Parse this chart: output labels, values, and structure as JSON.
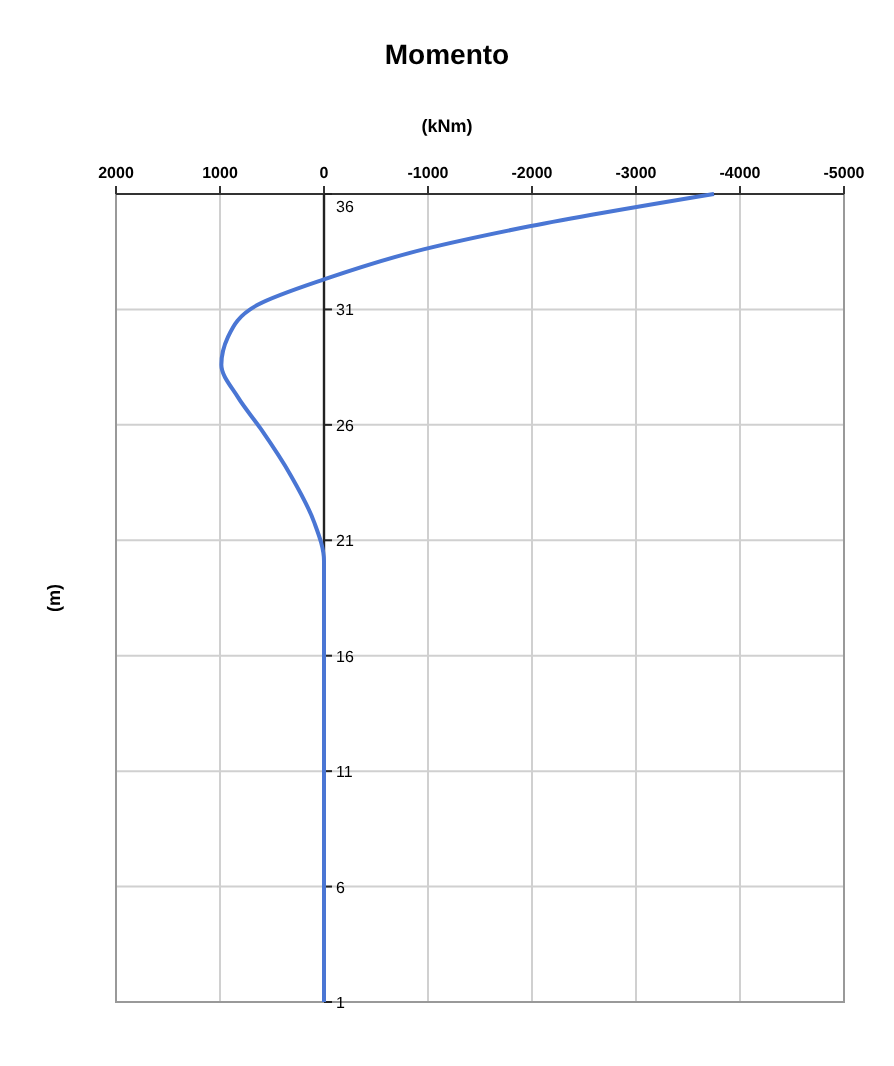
{
  "chart_data": {
    "type": "line",
    "title": "Momento",
    "xlabel": "(kNm)",
    "ylabel": "(m)",
    "series": [
      {
        "color": "#4a76d4",
        "x": [
          -3750,
          -1977,
          -956,
          0,
          637,
          924,
          987,
          828,
          604,
          318,
          96,
          0,
          0,
          0,
          0
        ],
        "values": [
          36,
          34.6,
          33.6,
          32.3,
          31.2,
          29.8,
          28.6,
          27.2,
          25.8,
          23.8,
          21.8,
          20.1,
          19,
          10,
          1
        ]
      }
    ],
    "xlim": [
      2000,
      -5000
    ],
    "xticks": [
      2000,
      1000,
      0,
      -1000,
      -2000,
      -3000,
      -4000,
      -5000
    ],
    "ylim": [
      1,
      36
    ],
    "yticks": [
      1,
      6,
      11,
      16,
      21,
      26,
      31,
      36
    ],
    "grid": true,
    "marker": "none",
    "line_style": "solid"
  }
}
